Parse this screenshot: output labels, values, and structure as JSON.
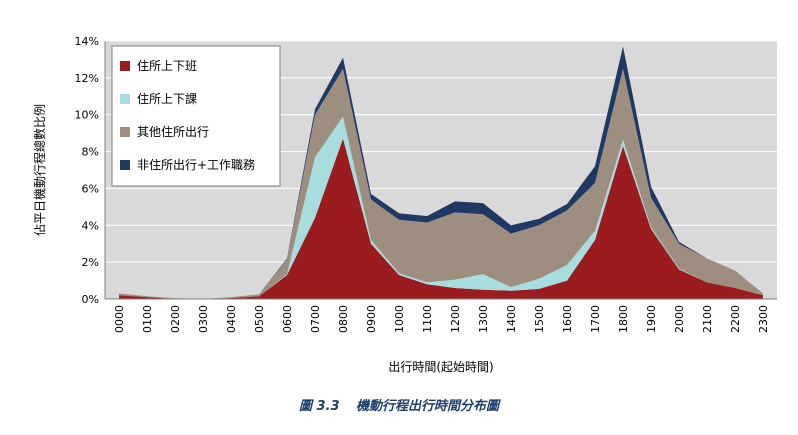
{
  "chart_data": {
    "type": "area",
    "stacked": true,
    "xlabel": "出行時間(起始時間)",
    "ylabel": "佔平日機動行程總數比例",
    "ylim": [
      0,
      14
    ],
    "y_ticks": [
      "0%",
      "2%",
      "4%",
      "6%",
      "8%",
      "10%",
      "12%",
      "14%"
    ],
    "grid": true,
    "legend_position": "top-left",
    "categories": [
      "0000",
      "0100",
      "0200",
      "0300",
      "0400",
      "0500",
      "0600",
      "0700",
      "0800",
      "0900",
      "1000",
      "1100",
      "1200",
      "1300",
      "1400",
      "1500",
      "1600",
      "1700",
      "1800",
      "1900",
      "2000",
      "2100",
      "2200",
      "2300"
    ],
    "series": [
      {
        "name": "住所上下班",
        "color": "#9b1c1f",
        "values": [
          0.2,
          0.1,
          0.0,
          0.0,
          0.05,
          0.15,
          1.3,
          4.4,
          8.7,
          3.0,
          1.3,
          0.8,
          0.6,
          0.5,
          0.45,
          0.55,
          1.0,
          3.2,
          8.3,
          3.8,
          1.6,
          0.9,
          0.6,
          0.2
        ]
      },
      {
        "name": "住所上下課",
        "color": "#a8dde0",
        "values": [
          0.0,
          0.0,
          0.0,
          0.0,
          0.0,
          0.0,
          0.05,
          3.3,
          1.2,
          0.2,
          0.1,
          0.1,
          0.45,
          0.85,
          0.2,
          0.55,
          0.85,
          0.5,
          0.35,
          0.1,
          0.05,
          0.0,
          0.0,
          0.0
        ]
      },
      {
        "name": "其他住所出行",
        "color": "#9e8e80",
        "values": [
          0.1,
          0.05,
          0.05,
          0.0,
          0.05,
          0.1,
          0.8,
          2.3,
          2.6,
          2.2,
          2.9,
          3.25,
          3.65,
          3.25,
          2.9,
          2.9,
          2.95,
          2.6,
          3.85,
          1.6,
          1.35,
          1.3,
          0.95,
          0.1
        ]
      },
      {
        "name": "非住所出行+工作職務",
        "color": "#1f3864",
        "values": [
          0.0,
          0.0,
          0.0,
          0.0,
          0.0,
          0.0,
          0.05,
          0.3,
          0.6,
          0.3,
          0.35,
          0.35,
          0.6,
          0.6,
          0.45,
          0.35,
          0.35,
          0.9,
          1.2,
          0.6,
          0.1,
          0.0,
          0.0,
          0.0
        ]
      }
    ]
  },
  "caption": {
    "figure_number": "圖 3.3",
    "title": "機動行程出行時間分布圖"
  }
}
